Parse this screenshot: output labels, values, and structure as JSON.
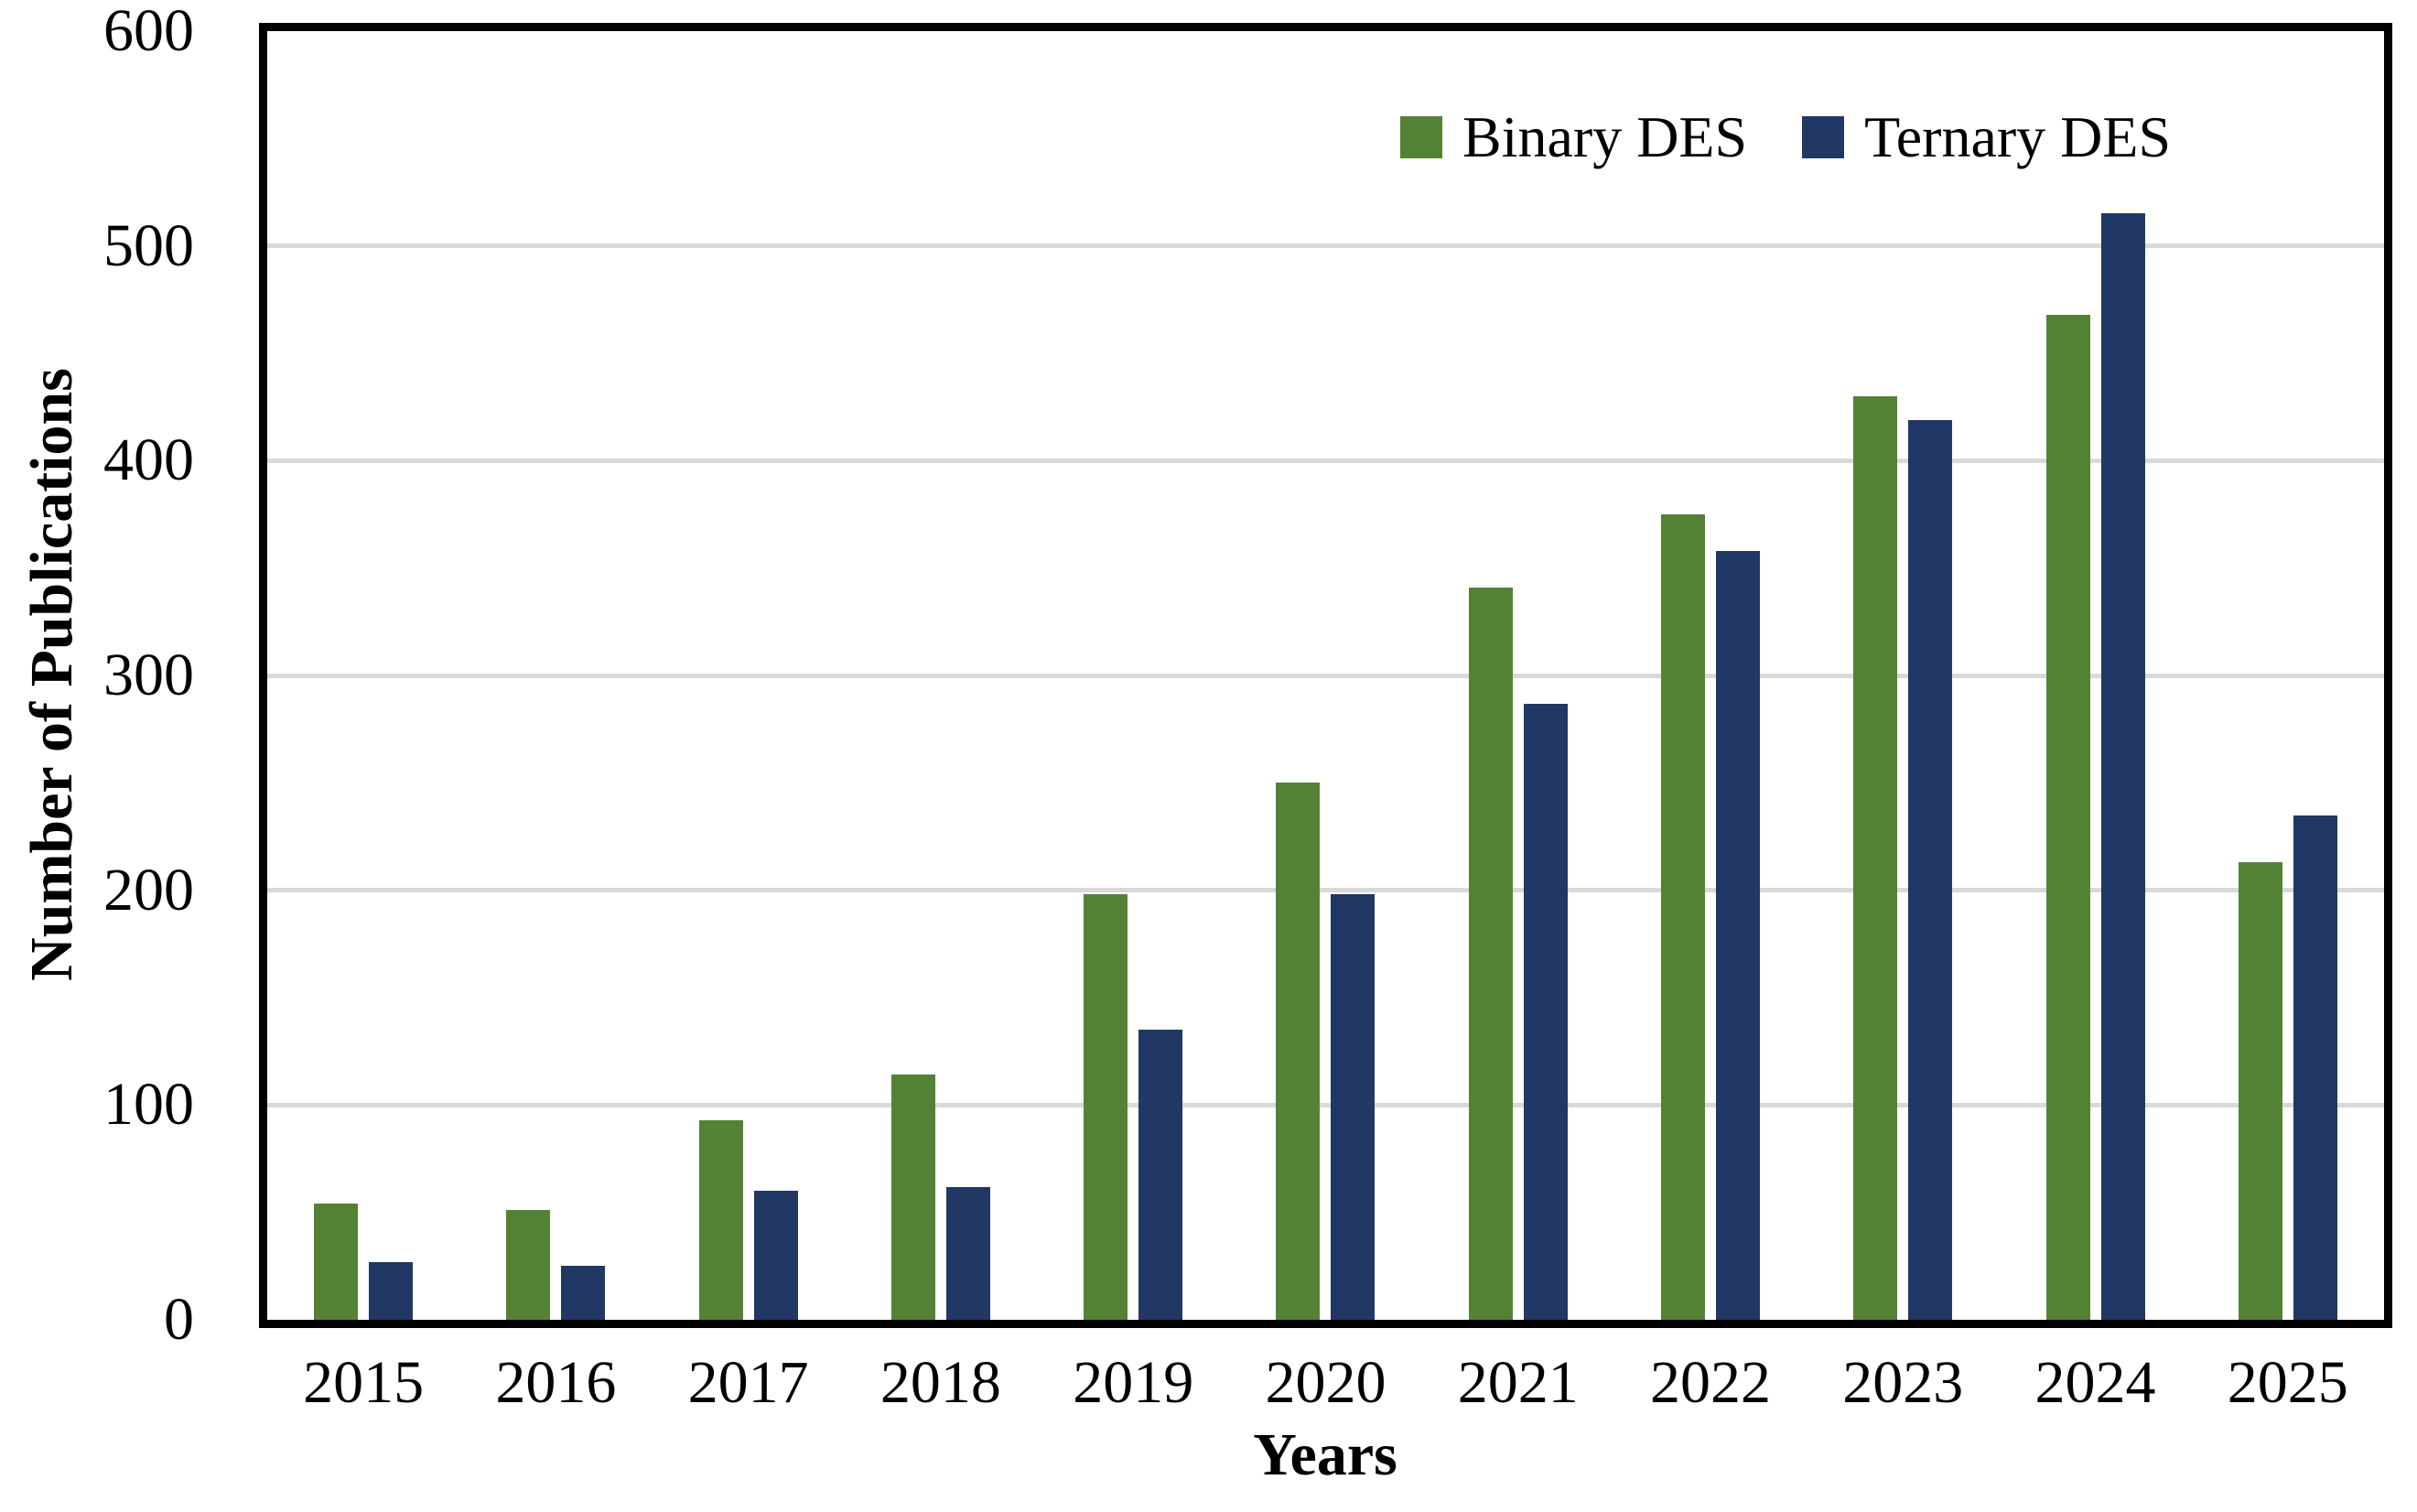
{
  "chart_data": {
    "type": "bar",
    "title": "",
    "xlabel": "Years",
    "ylabel": "Number of Publications",
    "categories": [
      "2015",
      "2016",
      "2017",
      "2018",
      "2019",
      "2020",
      "2021",
      "2022",
      "2023",
      "2024",
      "2025"
    ],
    "series": [
      {
        "name": "Binary DES",
        "color": "#548235",
        "values": [
          54,
          51,
          93,
          114,
          198,
          250,
          341,
          375,
          430,
          468,
          213
        ]
      },
      {
        "name": "Ternary DES",
        "color": "#203863",
        "values": [
          27,
          25,
          60,
          62,
          135,
          198,
          287,
          358,
          419,
          515,
          235
        ]
      }
    ],
    "ylim": [
      0,
      600
    ],
    "yticks": [
      0,
      100,
      200,
      300,
      400,
      500,
      600
    ],
    "grid": true,
    "grid_color": "#D9D9D9",
    "legend_position": "top-right-inside"
  },
  "colors": {
    "axis": "#000000",
    "background": "#FFFFFF",
    "text": "#000000"
  }
}
